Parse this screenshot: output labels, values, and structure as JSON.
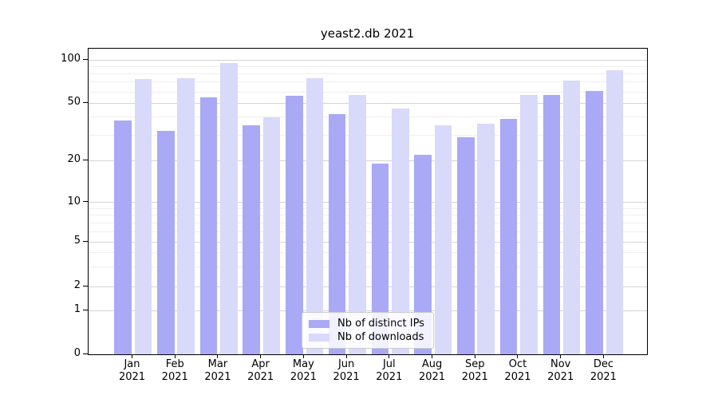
{
  "title": "yeast2.db 2021",
  "chart_data": {
    "type": "bar",
    "title": "yeast2.db 2021",
    "categories": [
      "Jan 2021",
      "Feb 2021",
      "Mar 2021",
      "Apr 2021",
      "May 2021",
      "Jun 2021",
      "Jul 2021",
      "Aug 2021",
      "Sep 2021",
      "Oct 2021",
      "Nov 2021",
      "Dec 2021"
    ],
    "series": [
      {
        "name": "Nb of distinct IPs",
        "color": "#a9a9f6",
        "values": [
          38,
          32,
          55,
          35,
          56,
          42,
          19,
          22,
          29,
          39,
          57,
          61
        ]
      },
      {
        "name": "Nb of downloads",
        "color": "#d9d9fa",
        "values": [
          74,
          75,
          95,
          40,
          75,
          57,
          46,
          35,
          36,
          57,
          72,
          85
        ]
      }
    ],
    "xlabel": "",
    "ylabel": "",
    "yscale": "symlog (linear 0-1, logarithmic above 1)",
    "y_ticks": [
      0,
      1,
      2,
      5,
      10,
      20,
      50,
      100
    ],
    "y_minor_ticks": [
      3,
      4,
      6,
      7,
      8,
      9,
      30,
      40,
      60,
      70,
      80,
      90
    ],
    "ylim": [
      0,
      120
    ],
    "grid": true,
    "legend_position": "lower center inside plot",
    "spine_color": "#000000",
    "major_grid_color": "#d4d4d4",
    "minor_grid_color": "#efefef"
  }
}
